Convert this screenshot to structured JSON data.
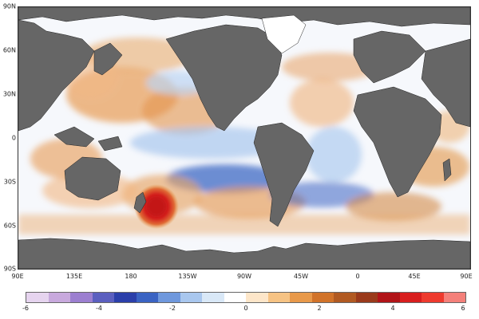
{
  "map": {
    "lat_labels": [
      "90N",
      "60N",
      "30N",
      "0",
      "30S",
      "60S",
      "90S"
    ],
    "lon_labels": [
      "90E",
      "135E",
      "180",
      "135W",
      "90W",
      "45W",
      "0",
      "45E",
      "90E"
    ],
    "colors": {
      "land": "#666666",
      "borders": "#222222",
      "ocean_neutral": "#ffffff",
      "warm_anomaly": "#d98a3a",
      "cool_anomaly": "#8fb6e6",
      "hotspot_core": "#c8141e"
    }
  },
  "colorbar": {
    "tick_labels": [
      "-6",
      "-4",
      "-2",
      "0",
      "2",
      "4",
      "6"
    ],
    "colors": [
      "#e6d4ef",
      "#c8a9dd",
      "#9c7fd0",
      "#5b5fbf",
      "#2b3faa",
      "#3a63c3",
      "#6f98dd",
      "#a9c7ee",
      "#d9e8f7",
      "#ffffff",
      "#fde6c9",
      "#f6c384",
      "#e8994a",
      "#d1732a",
      "#b15a22",
      "#9a3a1b",
      "#b11418",
      "#d81e1e",
      "#ee3a2e",
      "#f4807a"
    ]
  }
}
